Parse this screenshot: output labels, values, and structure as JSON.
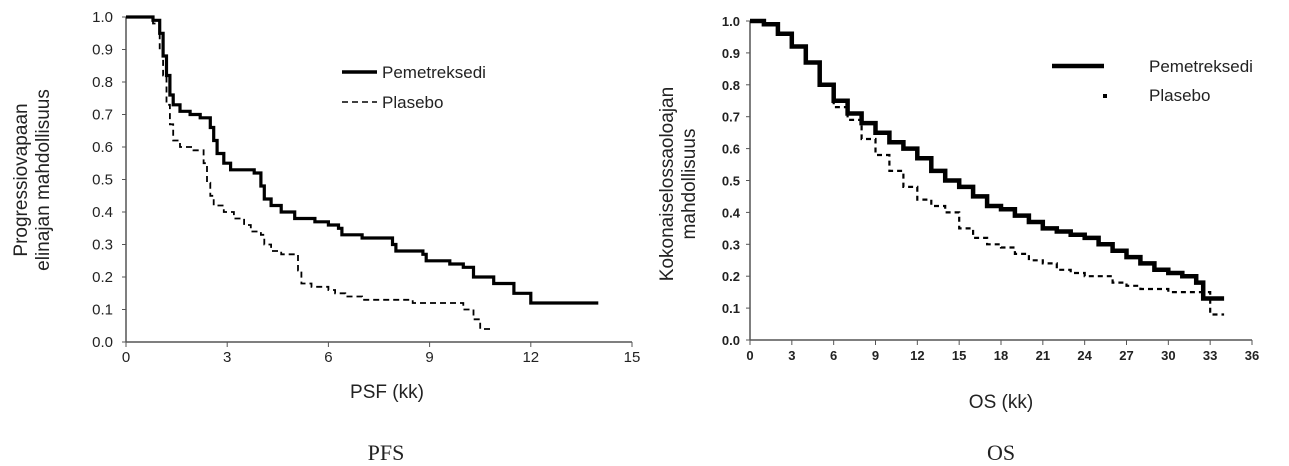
{
  "colors": {
    "line": "#000000",
    "axis": "#555555",
    "text": "#222222"
  },
  "chart_data": [
    {
      "type": "line",
      "caption": "PFS",
      "xlabel": "PSF (kk)",
      "ylabel_lines": [
        "Progressiovapaan",
        "elinajan mahdollisuus"
      ],
      "xlim": [
        0,
        15
      ],
      "ylim": [
        0,
        1
      ],
      "x_ticks": [
        "0",
        "3",
        "6",
        "9",
        "12",
        "15"
      ],
      "y_ticks": [
        "0.0",
        "0.1",
        "0.2",
        "0.3",
        "0.4",
        "0.5",
        "0.6",
        "0.7",
        "0.8",
        "0.9",
        "1.0"
      ],
      "grid": false,
      "legend_position": "top-right",
      "series": [
        {
          "name": "Pemetreksedi",
          "style": "solid",
          "points": [
            [
              0,
              1.0
            ],
            [
              0.5,
              1.0
            ],
            [
              0.8,
              0.99
            ],
            [
              1.0,
              0.95
            ],
            [
              1.1,
              0.88
            ],
            [
              1.2,
              0.82
            ],
            [
              1.3,
              0.76
            ],
            [
              1.4,
              0.73
            ],
            [
              1.6,
              0.71
            ],
            [
              1.9,
              0.7
            ],
            [
              2.2,
              0.69
            ],
            [
              2.5,
              0.66
            ],
            [
              2.6,
              0.62
            ],
            [
              2.7,
              0.58
            ],
            [
              2.9,
              0.55
            ],
            [
              3.1,
              0.53
            ],
            [
              3.5,
              0.53
            ],
            [
              3.8,
              0.52
            ],
            [
              4.0,
              0.48
            ],
            [
              4.1,
              0.44
            ],
            [
              4.3,
              0.42
            ],
            [
              4.6,
              0.4
            ],
            [
              5.0,
              0.38
            ],
            [
              5.6,
              0.37
            ],
            [
              6.0,
              0.36
            ],
            [
              6.3,
              0.35
            ],
            [
              6.4,
              0.33
            ],
            [
              7.0,
              0.32
            ],
            [
              7.7,
              0.32
            ],
            [
              7.9,
              0.3
            ],
            [
              8.0,
              0.28
            ],
            [
              8.8,
              0.27
            ],
            [
              8.9,
              0.25
            ],
            [
              9.5,
              0.25
            ],
            [
              9.6,
              0.24
            ],
            [
              10.0,
              0.23
            ],
            [
              10.3,
              0.2
            ],
            [
              10.9,
              0.18
            ],
            [
              11.5,
              0.15
            ],
            [
              12.0,
              0.12
            ],
            [
              14.0,
              0.12
            ]
          ]
        },
        {
          "name": "Plasebo",
          "style": "dashed",
          "points": [
            [
              0,
              1.0
            ],
            [
              0.6,
              1.0
            ],
            [
              0.8,
              0.98
            ],
            [
              1.0,
              0.9
            ],
            [
              1.1,
              0.82
            ],
            [
              1.2,
              0.73
            ],
            [
              1.3,
              0.67
            ],
            [
              1.4,
              0.62
            ],
            [
              1.6,
              0.6
            ],
            [
              2.0,
              0.59
            ],
            [
              2.3,
              0.55
            ],
            [
              2.4,
              0.49
            ],
            [
              2.5,
              0.45
            ],
            [
              2.6,
              0.42
            ],
            [
              2.9,
              0.4
            ],
            [
              3.2,
              0.38
            ],
            [
              3.5,
              0.36
            ],
            [
              3.7,
              0.34
            ],
            [
              4.0,
              0.33
            ],
            [
              4.1,
              0.3
            ],
            [
              4.3,
              0.28
            ],
            [
              4.6,
              0.27
            ],
            [
              5.0,
              0.27
            ],
            [
              5.1,
              0.22
            ],
            [
              5.2,
              0.18
            ],
            [
              5.5,
              0.17
            ],
            [
              6.0,
              0.16
            ],
            [
              6.2,
              0.15
            ],
            [
              6.5,
              0.14
            ],
            [
              7.0,
              0.13
            ],
            [
              7.5,
              0.13
            ],
            [
              8.0,
              0.13
            ],
            [
              8.5,
              0.12
            ],
            [
              9.0,
              0.12
            ],
            [
              9.5,
              0.12
            ],
            [
              10.0,
              0.1
            ],
            [
              10.3,
              0.07
            ],
            [
              10.5,
              0.04
            ],
            [
              10.8,
              0.04
            ]
          ]
        }
      ]
    },
    {
      "type": "line",
      "caption": "OS",
      "xlabel": "OS (kk)",
      "ylabel_lines": [
        "Kokonaiselossaoloajan",
        "mahdollisuus"
      ],
      "xlim": [
        0,
        36
      ],
      "ylim": [
        0,
        1
      ],
      "x_ticks": [
        "0",
        "3",
        "6",
        "9",
        "12",
        "15",
        "18",
        "21",
        "24",
        "27",
        "30",
        "33",
        "36"
      ],
      "y_ticks": [
        "0.0",
        "0.1",
        "0.2",
        "0.3",
        "0.4",
        "0.5",
        "0.6",
        "0.7",
        "0.8",
        "0.9",
        "1.0"
      ],
      "grid": false,
      "legend_position": "top-right",
      "series": [
        {
          "name": "Pemetreksedi",
          "style": "solid",
          "points": [
            [
              0,
              1.0
            ],
            [
              1,
              0.99
            ],
            [
              2,
              0.96
            ],
            [
              3,
              0.92
            ],
            [
              4,
              0.87
            ],
            [
              5,
              0.8
            ],
            [
              6,
              0.75
            ],
            [
              7,
              0.71
            ],
            [
              8,
              0.68
            ],
            [
              9,
              0.65
            ],
            [
              10,
              0.62
            ],
            [
              11,
              0.6
            ],
            [
              12,
              0.57
            ],
            [
              13,
              0.53
            ],
            [
              14,
              0.5
            ],
            [
              15,
              0.48
            ],
            [
              16,
              0.45
            ],
            [
              17,
              0.42
            ],
            [
              18,
              0.41
            ],
            [
              19,
              0.39
            ],
            [
              20,
              0.37
            ],
            [
              21,
              0.35
            ],
            [
              22,
              0.34
            ],
            [
              23,
              0.33
            ],
            [
              24,
              0.32
            ],
            [
              25,
              0.3
            ],
            [
              26,
              0.28
            ],
            [
              27,
              0.26
            ],
            [
              28,
              0.24
            ],
            [
              29,
              0.22
            ],
            [
              30,
              0.21
            ],
            [
              31,
              0.2
            ],
            [
              32,
              0.18
            ],
            [
              32.5,
              0.13
            ],
            [
              34,
              0.13
            ]
          ]
        },
        {
          "name": "Plasebo",
          "style": "dashed",
          "points": [
            [
              0,
              1.0
            ],
            [
              1,
              0.99
            ],
            [
              2,
              0.96
            ],
            [
              3,
              0.92
            ],
            [
              4,
              0.87
            ],
            [
              5,
              0.8
            ],
            [
              6,
              0.73
            ],
            [
              7,
              0.69
            ],
            [
              8,
              0.63
            ],
            [
              9,
              0.58
            ],
            [
              10,
              0.53
            ],
            [
              11,
              0.48
            ],
            [
              12,
              0.44
            ],
            [
              13,
              0.42
            ],
            [
              14,
              0.4
            ],
            [
              15,
              0.35
            ],
            [
              16,
              0.32
            ],
            [
              17,
              0.3
            ],
            [
              18,
              0.29
            ],
            [
              19,
              0.27
            ],
            [
              20,
              0.25
            ],
            [
              21,
              0.24
            ],
            [
              22,
              0.22
            ],
            [
              23,
              0.21
            ],
            [
              24,
              0.2
            ],
            [
              25,
              0.2
            ],
            [
              26,
              0.18
            ],
            [
              27,
              0.17
            ],
            [
              28,
              0.16
            ],
            [
              30,
              0.15
            ],
            [
              32,
              0.15
            ],
            [
              33,
              0.08
            ],
            [
              34,
              0.08
            ]
          ]
        }
      ]
    }
  ]
}
